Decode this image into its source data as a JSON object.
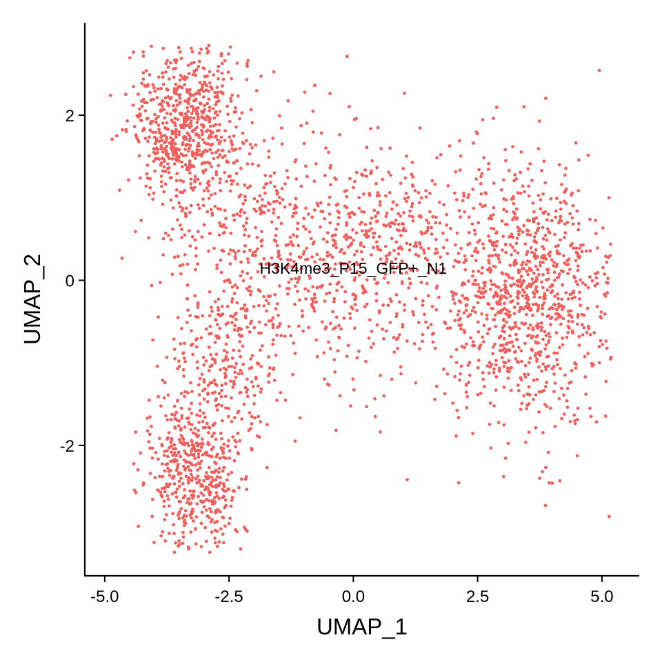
{
  "chart_data": {
    "type": "scatter",
    "xlabel": "UMAP_1",
    "ylabel": "UMAP_2",
    "xlim": [
      -5.4,
      5.75
    ],
    "ylim": [
      -3.58,
      3.12
    ],
    "x_ticks": [
      {
        "value": -5.0,
        "label": "-5.0"
      },
      {
        "value": -2.5,
        "label": "-2.5"
      },
      {
        "value": 0.0,
        "label": "0.0"
      },
      {
        "value": 2.5,
        "label": "2.5"
      },
      {
        "value": 5.0,
        "label": "5.0"
      }
    ],
    "y_ticks": [
      {
        "value": 2,
        "label": "2"
      },
      {
        "value": 0,
        "label": "0"
      },
      {
        "value": -2,
        "label": "-2"
      }
    ],
    "grid": false,
    "legend": "none",
    "point_color": "#F0605C",
    "cluster_label": {
      "text": "H3K4me3_P15_GFP+_N1",
      "x": 0.0,
      "y": 0.08
    },
    "series": [
      {
        "clusters": [
          {
            "cx": -3.4,
            "cy": 1.85,
            "sx": 0.55,
            "sy": 0.5,
            "n": 650
          },
          {
            "cx": -3.2,
            "cy": -2.4,
            "sx": 0.45,
            "sy": 0.5,
            "n": 480
          },
          {
            "cx": 3.5,
            "cy": -0.2,
            "sx": 0.85,
            "sy": 0.8,
            "n": 950
          },
          {
            "cx": 0.1,
            "cy": 0.3,
            "sx": 1.4,
            "sy": 0.75,
            "n": 700
          },
          {
            "cx": -2.4,
            "cy": 0.3,
            "sx": 0.6,
            "sy": 1.1,
            "n": 260
          },
          {
            "cx": -2.6,
            "cy": -1.0,
            "sx": 0.6,
            "sy": 0.5,
            "n": 200
          }
        ]
      }
    ]
  }
}
